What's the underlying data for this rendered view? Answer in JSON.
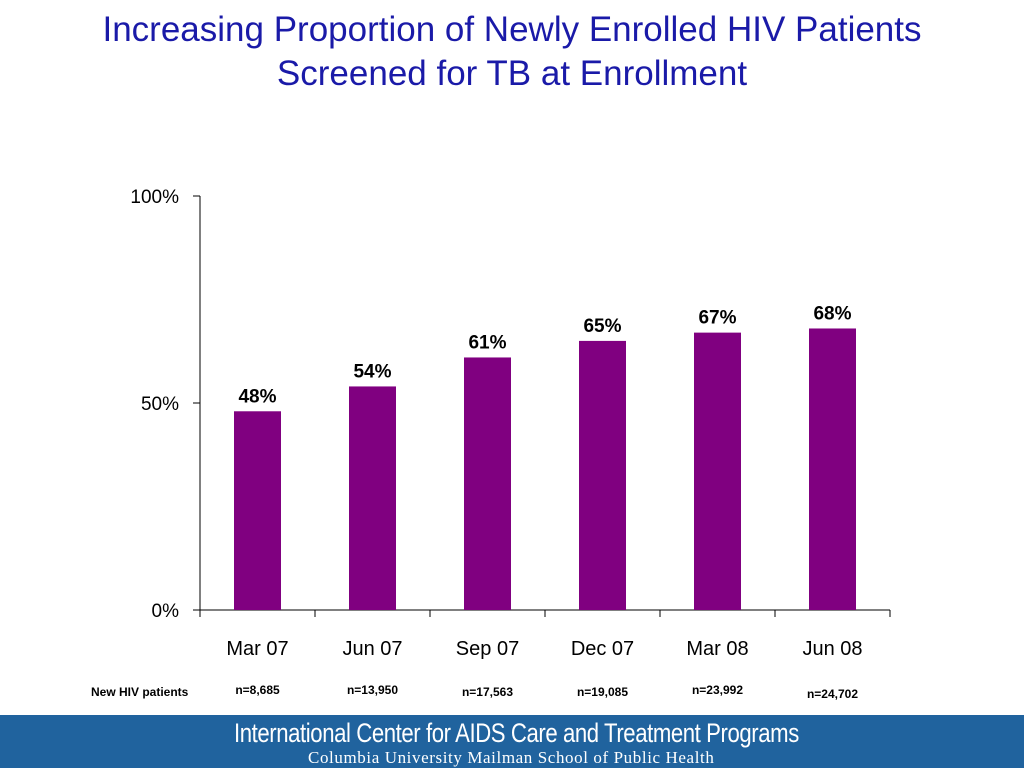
{
  "title": {
    "line1": "Increasing Proportion of Newly Enrolled HIV Patients",
    "line2": "Screened for TB at Enrollment"
  },
  "colors": {
    "title": "#1a1aa8",
    "bar": "#800080",
    "footer_bg": "#20639e"
  },
  "chart_data": {
    "type": "bar",
    "categories": [
      "Mar 07",
      "Jun 07",
      "Sep 07",
      "Dec 07",
      "Mar 08",
      "Jun 08"
    ],
    "values": [
      48,
      54,
      61,
      65,
      67,
      68
    ],
    "data_labels": [
      "48%",
      "54%",
      "61%",
      "65%",
      "67%",
      "68%"
    ],
    "yticks": [
      "0%",
      "50%",
      "100%"
    ],
    "ylim": [
      0,
      100
    ],
    "grid": false,
    "legend": "none",
    "row_label": "New HIV patients",
    "n_labels": [
      "n=8,685",
      "n=13,950",
      "n=17,563",
      "n=19,085",
      "n=23,992",
      "n=24,702"
    ]
  },
  "footer": {
    "org": "International Center for AIDS Care and Treatment Programs",
    "school": "Columbia University Mailman School of Public Health"
  }
}
